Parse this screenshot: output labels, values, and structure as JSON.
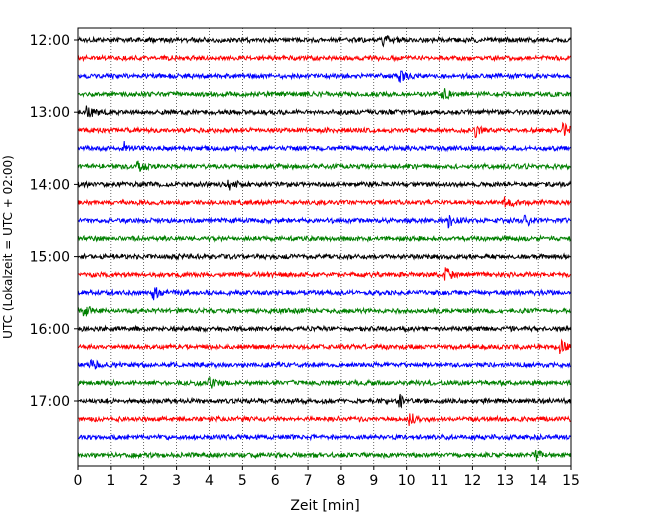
{
  "chart_data": {
    "type": "line",
    "title": "",
    "xlabel": "Zeit  [min]",
    "ylabel": "UTC (Lokalzeit = UTC + 02:00)",
    "xlim": [
      0,
      15
    ],
    "x_ticks": [
      "0",
      "1",
      "2",
      "3",
      "4",
      "5",
      "6",
      "7",
      "8",
      "9",
      "10",
      "11",
      "12",
      "13",
      "14",
      "15"
    ],
    "y_ticks": [
      {
        "label": "12:00",
        "row": 0
      },
      {
        "label": "13:00",
        "row": 4
      },
      {
        "label": "14:00",
        "row": 8
      },
      {
        "label": "15:00",
        "row": 12
      },
      {
        "label": "16:00",
        "row": 16
      },
      {
        "label": "17:00",
        "row": 20
      }
    ],
    "grid_x": true,
    "colors": [
      "#000000",
      "#ff0000",
      "#0000ff",
      "#008000"
    ],
    "traces": [
      {
        "time": "12:00",
        "color": "#000000",
        "events": [
          9.3
        ]
      },
      {
        "time": "12:15",
        "color": "#ff0000",
        "events": []
      },
      {
        "time": "12:30",
        "color": "#0000ff",
        "events": [
          9.8
        ]
      },
      {
        "time": "12:45",
        "color": "#008000",
        "events": [
          11.1
        ]
      },
      {
        "time": "13:00",
        "color": "#000000",
        "events": [
          0.3
        ]
      },
      {
        "time": "13:15",
        "color": "#ff0000",
        "events": [
          12.1,
          14.8
        ]
      },
      {
        "time": "13:30",
        "color": "#0000ff",
        "events": [
          1.4
        ]
      },
      {
        "time": "13:45",
        "color": "#008000",
        "events": [
          1.8
        ]
      },
      {
        "time": "14:00",
        "color": "#000000",
        "events": [
          4.6
        ]
      },
      {
        "time": "14:15",
        "color": "#ff0000",
        "events": [
          13.0
        ]
      },
      {
        "time": "14:30",
        "color": "#0000ff",
        "events": [
          11.3,
          13.6
        ]
      },
      {
        "time": "14:45",
        "color": "#008000",
        "events": []
      },
      {
        "time": "15:00",
        "color": "#000000",
        "events": []
      },
      {
        "time": "15:15",
        "color": "#ff0000",
        "events": [
          11.2
        ]
      },
      {
        "time": "15:30",
        "color": "#0000ff",
        "events": [
          2.3
        ]
      },
      {
        "time": "15:45",
        "color": "#008000",
        "events": [
          0.2
        ]
      },
      {
        "time": "16:00",
        "color": "#000000",
        "events": []
      },
      {
        "time": "16:15",
        "color": "#ff0000",
        "events": [
          14.7
        ]
      },
      {
        "time": "16:30",
        "color": "#0000ff",
        "events": [
          0.4
        ]
      },
      {
        "time": "16:45",
        "color": "#008000",
        "events": [
          4.0
        ]
      },
      {
        "time": "17:00",
        "color": "#000000",
        "events": [
          9.8
        ]
      },
      {
        "time": "17:15",
        "color": "#ff0000",
        "events": [
          10.1
        ]
      },
      {
        "time": "17:30",
        "color": "#0000ff",
        "events": []
      },
      {
        "time": "17:45",
        "color": "#008000",
        "events": [
          13.9
        ]
      }
    ]
  }
}
